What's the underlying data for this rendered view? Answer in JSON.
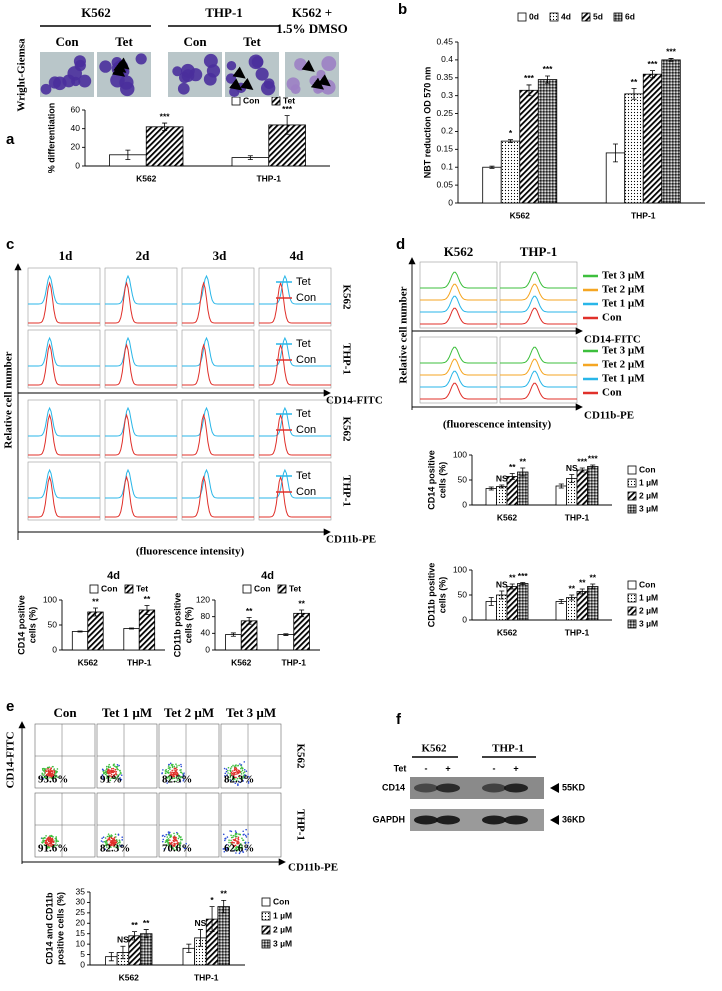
{
  "chart_data": [
    {
      "type": "bar",
      "ylabel": "% differentiation",
      "categories": [
        "K562",
        "THP-1"
      ],
      "series": [
        {
          "name": "Con",
          "fill": "white",
          "values": [
            12,
            9
          ],
          "errors": [
            5,
            2
          ],
          "annotations": [
            null,
            null
          ]
        },
        {
          "name": "Tet",
          "fill": "hatch",
          "values": [
            42,
            44
          ],
          "errors": [
            4,
            10
          ],
          "annotations": [
            "***",
            "***"
          ]
        }
      ],
      "ylim": [
        0,
        60
      ],
      "yticks": [
        0,
        20,
        40,
        60
      ]
    },
    {
      "type": "bar",
      "ylabel": "NBT reduction OD 570 nm",
      "categories": [
        "K562",
        "THP-1"
      ],
      "series": [
        {
          "name": "0d",
          "fill": "white",
          "values": [
            0.1,
            0.14
          ],
          "errors": [
            0.003,
            0.025
          ],
          "annotations": [
            null,
            null
          ]
        },
        {
          "name": "4d",
          "fill": "dots",
          "values": [
            0.173,
            0.305
          ],
          "errors": [
            0.004,
            0.015
          ],
          "annotations": [
            "*",
            "**"
          ]
        },
        {
          "name": "5d",
          "fill": "hatch",
          "values": [
            0.315,
            0.36
          ],
          "errors": [
            0.015,
            0.01
          ],
          "annotations": [
            "***",
            "***"
          ]
        },
        {
          "name": "6d",
          "fill": "cross",
          "values": [
            0.345,
            0.4
          ],
          "errors": [
            0.01,
            0.004
          ],
          "annotations": [
            "***",
            "***"
          ]
        }
      ],
      "ylim": [
        0,
        0.45
      ],
      "yticks": [
        0,
        0.05,
        0.1,
        0.15,
        0.2,
        0.25,
        0.3,
        0.35,
        0.4,
        0.45
      ]
    },
    {
      "type": "bar",
      "title": "4d",
      "ylabel": [
        "CD14  positive",
        "cells (%)"
      ],
      "categories": [
        "K562",
        "THP-1"
      ],
      "series": [
        {
          "name": "Con",
          "fill": "white",
          "values": [
            37,
            43
          ],
          "errors": [
            1,
            1
          ],
          "annotations": [
            null,
            null
          ]
        },
        {
          "name": "Tet",
          "fill": "hatch",
          "values": [
            76,
            80
          ],
          "errors": [
            8,
            9
          ],
          "annotations": [
            "**",
            "**"
          ]
        }
      ],
      "ylim": [
        0,
        100
      ],
      "yticks": [
        0,
        50,
        100
      ]
    },
    {
      "type": "bar",
      "title": "4d",
      "ylabel": [
        "CD11b  positive",
        "cells (%)"
      ],
      "categories": [
        "K562",
        "THP-1"
      ],
      "series": [
        {
          "name": "Con",
          "fill": "white",
          "values": [
            37,
            37
          ],
          "errors": [
            4,
            2
          ],
          "annotations": [
            null,
            null
          ]
        },
        {
          "name": "Tet",
          "fill": "hatch",
          "values": [
            70,
            88
          ],
          "errors": [
            8,
            8
          ],
          "annotations": [
            "**",
            "**"
          ]
        }
      ],
      "ylim": [
        0,
        120
      ],
      "yticks": [
        0,
        40,
        80,
        120
      ]
    },
    {
      "type": "bar",
      "ylabel": [
        "CD14  positive",
        "cells (%)"
      ],
      "categories": [
        "K562",
        "THP-1"
      ],
      "series": [
        {
          "name": "Con",
          "fill": "white",
          "values": [
            33,
            38
          ],
          "errors": [
            3,
            4
          ],
          "annotations": [
            null,
            null
          ]
        },
        {
          "name": "1 µM",
          "fill": "dots",
          "values": [
            37,
            53
          ],
          "errors": [
            3,
            8
          ],
          "annotations": [
            "NS",
            "NS"
          ]
        },
        {
          "name": "2 µM",
          "fill": "hatch",
          "values": [
            57,
            70
          ],
          "errors": [
            6,
            4
          ],
          "annotations": [
            "**",
            "***"
          ]
        },
        {
          "name": "3 µM",
          "fill": "cross",
          "values": [
            66,
            77
          ],
          "errors": [
            8,
            3
          ],
          "annotations": [
            "**",
            "***"
          ]
        }
      ],
      "ylim": [
        0,
        100
      ],
      "yticks": [
        0,
        50,
        100
      ]
    },
    {
      "type": "bar",
      "ylabel": [
        "CD11b  positive",
        "cells (%)"
      ],
      "categories": [
        "K562",
        "THP-1"
      ],
      "series": [
        {
          "name": "Con",
          "fill": "white",
          "values": [
            37,
            37
          ],
          "errors": [
            8,
            4
          ],
          "annotations": [
            null,
            null
          ]
        },
        {
          "name": "1 µM",
          "fill": "dots",
          "values": [
            50,
            45
          ],
          "errors": [
            8,
            5
          ],
          "annotations": [
            "NS",
            "**"
          ]
        },
        {
          "name": "2 µM",
          "fill": "hatch",
          "values": [
            67,
            57
          ],
          "errors": [
            5,
            5
          ],
          "annotations": [
            "**",
            "**"
          ]
        },
        {
          "name": "3 µM",
          "fill": "cross",
          "values": [
            73,
            67
          ],
          "errors": [
            2,
            5
          ],
          "annotations": [
            "***",
            "**"
          ]
        }
      ],
      "ylim": [
        0,
        100
      ],
      "yticks": [
        0,
        50,
        100
      ]
    },
    {
      "type": "bar",
      "ylabel": [
        "CD14 and CD11b",
        "positive cells (%)"
      ],
      "categories": [
        "K562",
        "THP-1"
      ],
      "series": [
        {
          "name": "Con",
          "fill": "white",
          "values": [
            4,
            8
          ],
          "errors": [
            2,
            2
          ],
          "annotations": [
            null,
            null
          ]
        },
        {
          "name": "1 µM",
          "fill": "dots",
          "values": [
            6,
            13
          ],
          "errors": [
            3,
            4
          ],
          "annotations": [
            "NS",
            "NS"
          ]
        },
        {
          "name": "2 µM",
          "fill": "hatch",
          "values": [
            14,
            22
          ],
          "errors": [
            2,
            6
          ],
          "annotations": [
            "**",
            "*"
          ]
        },
        {
          "name": "3 µM",
          "fill": "cross",
          "values": [
            15,
            28
          ],
          "errors": [
            2,
            3
          ],
          "annotations": [
            "**",
            "**"
          ]
        }
      ],
      "ylim": [
        0,
        35
      ],
      "yticks": [
        0,
        5,
        10,
        15,
        20,
        25,
        30,
        35
      ]
    }
  ],
  "panels": {
    "a": {
      "label": "a",
      "stain": "Wright-Giemsa",
      "headers": [
        "K562",
        "THP-1"
      ],
      "dmso": [
        "K562 +",
        "1.5% DMSO"
      ],
      "conditions": [
        "Con",
        "Tet",
        "Con",
        "Tet"
      ]
    },
    "b": {
      "label": "b"
    },
    "c": {
      "label": "c",
      "days": [
        "1d",
        "2d",
        "3d",
        "4d"
      ],
      "legend": [
        {
          "name": "Tet",
          "color": "#29b6e8"
        },
        {
          "name": "Con",
          "color": "#e0302a"
        }
      ],
      "rows": [
        "K562",
        "THP-1",
        "K562",
        "THP-1"
      ],
      "markers": [
        "CD14-FITC",
        "CD11b-PE"
      ],
      "ylabel": "Relative cell number",
      "xlabel": "(fluorescence intensity)"
    },
    "d": {
      "label": "d",
      "headers": [
        "K562",
        "THP-1"
      ],
      "legend": [
        {
          "name": "Tet 3 µM",
          "color": "#3dbf3d"
        },
        {
          "name": "Tet 2 µM",
          "color": "#f5a623"
        },
        {
          "name": "Tet 1 µM",
          "color": "#29b6e8"
        },
        {
          "name": "Con",
          "color": "#e0302a"
        }
      ],
      "markers": [
        "CD14-FITC",
        "CD11b-PE"
      ],
      "ylabel": "Relative cell number",
      "xlabel": "(fluorescence intensity)"
    },
    "e": {
      "label": "e",
      "conditions": [
        "Con",
        "Tet 1 µM",
        "Tet 2 µM",
        "Tet 3 µM"
      ],
      "percent": [
        [
          "93.6%",
          "91%",
          "82.5%",
          "82.3%"
        ],
        [
          "91.6%",
          "82.3%",
          "70.6%",
          "62.6%"
        ]
      ],
      "rows": [
        "K562",
        "THP-1"
      ],
      "markers": [
        "CD14-FITC",
        "CD11b-PE"
      ]
    },
    "f": {
      "label": "f",
      "lines": [
        "K562",
        "THP-1"
      ],
      "treatment": "Tet",
      "lanes": [
        "-",
        "+",
        "-",
        "+"
      ],
      "proteins": [
        "CD14",
        "GAPDH"
      ],
      "sizes": [
        "55KD",
        "36KD"
      ]
    }
  }
}
